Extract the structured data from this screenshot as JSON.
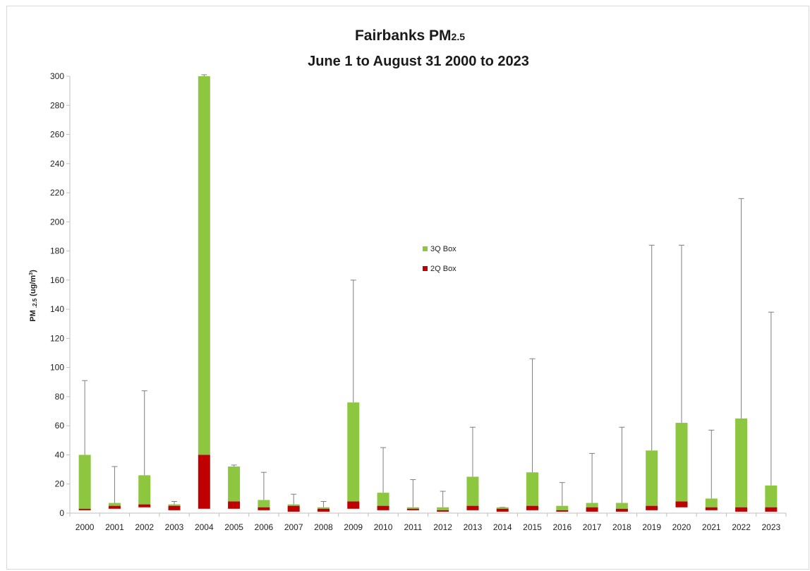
{
  "chart_data": {
    "type": "box",
    "title_main": "Fairbanks PM",
    "title_sub": "2.5",
    "subtitle": "June 1 to August 31 2000 to 2023",
    "ylabel_main": "PM",
    "ylabel_sub": ".2.5",
    "ylabel_unit": "(ug/m",
    "ylabel_sup": "3",
    "ylabel_close": ")",
    "ylim": [
      0,
      300
    ],
    "yticks": [
      0,
      20,
      40,
      60,
      80,
      100,
      120,
      140,
      160,
      180,
      200,
      220,
      240,
      260,
      280,
      300
    ],
    "grid": false,
    "legend_position": "center",
    "colors": {
      "q3_box": "#8dc63f",
      "q2_box": "#c00000",
      "whisker": "#7f7f7f"
    },
    "series": [
      {
        "name": "3Q Box",
        "color": "#8dc63f"
      },
      {
        "name": "2Q Box",
        "color": "#c00000"
      }
    ],
    "categories": [
      "2000",
      "2001",
      "2002",
      "2003",
      "2004",
      "2005",
      "2006",
      "2007",
      "2008",
      "2009",
      "2010",
      "2011",
      "2012",
      "2013",
      "2014",
      "2015",
      "2016",
      "2017",
      "2018",
      "2019",
      "2020",
      "2021",
      "2022",
      "2023"
    ],
    "q1": [
      2,
      3,
      4,
      2,
      3,
      3,
      2,
      1,
      1,
      3,
      2,
      2,
      1,
      2,
      1,
      2,
      1,
      1,
      1,
      2,
      4,
      2,
      1,
      1
    ],
    "median": [
      3,
      5,
      6,
      5,
      40,
      8,
      4,
      5,
      3,
      8,
      5,
      3,
      2,
      5,
      3,
      5,
      2,
      4,
      3,
      5,
      8,
      4,
      4,
      4
    ],
    "q3": [
      40,
      7,
      26,
      6,
      300,
      32,
      9,
      6,
      4,
      76,
      14,
      4,
      4,
      25,
      4,
      28,
      5,
      7,
      7,
      43,
      62,
      10,
      65,
      19
    ],
    "max": [
      91,
      32,
      84,
      8,
      301,
      33,
      28,
      13,
      8,
      160,
      45,
      23,
      15,
      59,
      4,
      106,
      21,
      41,
      59,
      184,
      184,
      57,
      216,
      138
    ]
  }
}
